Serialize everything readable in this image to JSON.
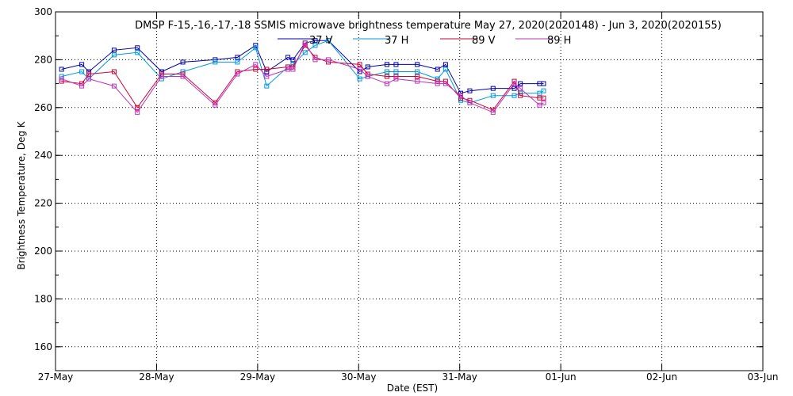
{
  "chart_data": {
    "type": "line",
    "title": "DMSP F-15,-16,-17,-18 SSMIS microwave brightness temperature May 27, 2020(2020148) - Jun  3, 2020(2020155)",
    "xlabel": "Date (EST)",
    "ylabel": "Brightness Temperature, Deg K",
    "xlim": [
      0,
      7
    ],
    "ylim": [
      150,
      300
    ],
    "x_ticks": [
      {
        "x": 0,
        "label": "27-May"
      },
      {
        "x": 1,
        "label": "28-May"
      },
      {
        "x": 2,
        "label": "29-May"
      },
      {
        "x": 3,
        "label": "30-May"
      },
      {
        "x": 4,
        "label": "31-May"
      },
      {
        "x": 5,
        "label": "01-Jun"
      },
      {
        "x": 6,
        "label": "02-Jun"
      },
      {
        "x": 7,
        "label": "03-Jun"
      }
    ],
    "y_ticks": [
      160,
      180,
      200,
      220,
      240,
      260,
      280,
      300
    ],
    "grid": true,
    "legend_position": "top-center",
    "series": [
      {
        "name": "37 V",
        "color": "#0000aa",
        "x": [
          0.06,
          0.26,
          0.33,
          0.58,
          0.81,
          1.05,
          1.26,
          1.58,
          1.8,
          1.98,
          2.09,
          2.3,
          2.35,
          2.47,
          2.57,
          2.7,
          3.01,
          3.09,
          3.28,
          3.37,
          3.58,
          3.78,
          3.86,
          4.01,
          4.1,
          4.33,
          4.54,
          4.6,
          4.79,
          4.83
        ],
        "y": [
          276,
          278,
          275,
          284,
          285,
          275,
          279,
          280,
          281,
          286,
          275,
          281,
          280,
          287,
          288,
          288,
          275,
          277,
          278,
          278,
          278,
          276,
          278,
          266,
          267,
          268,
          268,
          270,
          270,
          270
        ]
      },
      {
        "name": "37 H",
        "color": "#0099dd",
        "x": [
          0.06,
          0.26,
          0.33,
          0.58,
          0.81,
          1.05,
          1.26,
          1.58,
          1.8,
          1.98,
          2.09,
          2.3,
          2.35,
          2.47,
          2.57,
          2.7,
          3.01,
          3.09,
          3.28,
          3.37,
          3.58,
          3.78,
          3.86,
          4.01,
          4.1,
          4.33,
          4.54,
          4.6,
          4.79,
          4.83
        ],
        "y": [
          273,
          275,
          272,
          282,
          283,
          272,
          275,
          279,
          279,
          285,
          269,
          277,
          278,
          283,
          286,
          288,
          272,
          273,
          275,
          275,
          275,
          272,
          276,
          263,
          262,
          265,
          265,
          266,
          266,
          267
        ]
      },
      {
        "name": "89 V",
        "color": "#cc0033",
        "x": [
          0.06,
          0.26,
          0.33,
          0.58,
          0.81,
          1.05,
          1.26,
          1.58,
          1.8,
          1.98,
          2.09,
          2.3,
          2.35,
          2.47,
          2.57,
          2.7,
          3.01,
          3.09,
          3.28,
          3.37,
          3.58,
          3.78,
          3.86,
          4.01,
          4.1,
          4.33,
          4.54,
          4.6,
          4.79,
          4.83
        ],
        "y": [
          271,
          270,
          274,
          275,
          260,
          274,
          274,
          262,
          275,
          276,
          276,
          277,
          277,
          286,
          281,
          279,
          278,
          274,
          273,
          273,
          273,
          271,
          271,
          264,
          263,
          259,
          271,
          265,
          264,
          264
        ]
      },
      {
        "name": "89 H",
        "color": "#bb33bb",
        "x": [
          0.06,
          0.26,
          0.33,
          0.58,
          0.81,
          1.05,
          1.26,
          1.58,
          1.8,
          1.98,
          2.09,
          2.3,
          2.35,
          2.47,
          2.57,
          2.7,
          3.01,
          3.09,
          3.28,
          3.37,
          3.58,
          3.78,
          3.86,
          4.01,
          4.1,
          4.33,
          4.54,
          4.6,
          4.79,
          4.83
        ],
        "y": [
          272,
          269,
          272,
          269,
          258,
          273,
          273,
          261,
          274,
          278,
          273,
          276,
          276,
          287,
          280,
          280,
          276,
          273,
          270,
          272,
          271,
          270,
          270,
          265,
          262,
          258,
          270,
          268,
          261,
          262
        ]
      }
    ]
  }
}
